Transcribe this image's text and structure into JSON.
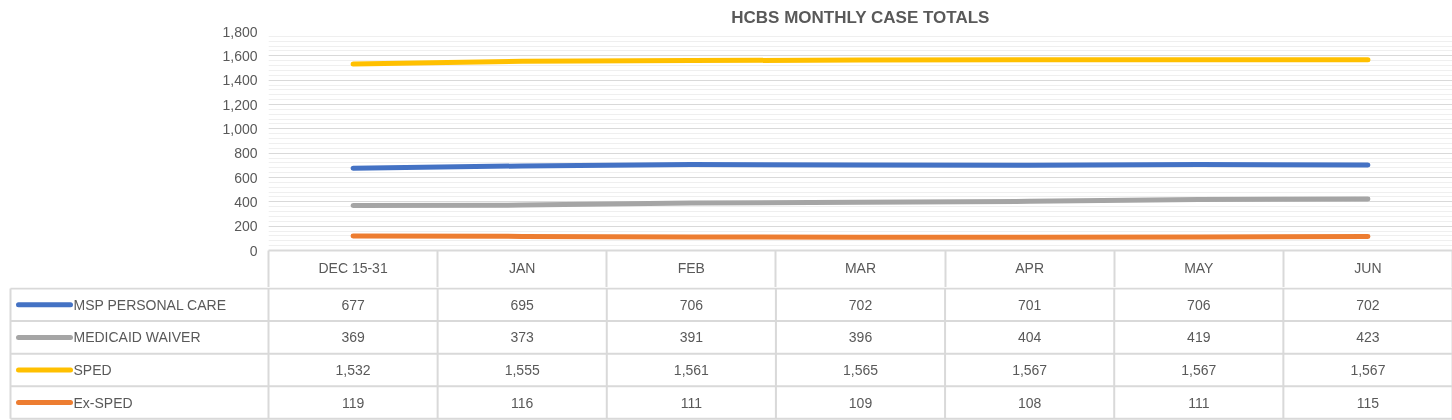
{
  "chart_data": {
    "type": "line",
    "title": "HCBS MONTHLY CASE TOTALS",
    "categories": [
      "DEC 15-31",
      "JAN",
      "FEB",
      "MAR",
      "APR",
      "MAY",
      "JUN"
    ],
    "series": [
      {
        "name": "MSP PERSONAL CARE",
        "color": "#4472c4",
        "values": [
          677,
          695,
          706,
          702,
          701,
          706,
          702
        ],
        "value_labels": [
          "677",
          "695",
          "706",
          "702",
          "701",
          "706",
          "702"
        ]
      },
      {
        "name": "MEDICAID WAIVER",
        "color": "#a5a5a5",
        "values": [
          369,
          373,
          391,
          396,
          404,
          419,
          423
        ],
        "value_labels": [
          "369",
          "373",
          "391",
          "396",
          "404",
          "419",
          "423"
        ]
      },
      {
        "name": "SPED",
        "color": "#ffc000",
        "values": [
          1532,
          1555,
          1561,
          1565,
          1567,
          1567,
          1567
        ],
        "value_labels": [
          "1,532",
          "1,555",
          "1,561",
          "1,565",
          "1,567",
          "1,567",
          "1,567"
        ]
      },
      {
        "name": "Ex-SPED",
        "color": "#ed7d31",
        "values": [
          119,
          116,
          111,
          109,
          108,
          111,
          115
        ],
        "value_labels": [
          "119",
          "116",
          "111",
          "109",
          "108",
          "111",
          "115"
        ]
      }
    ],
    "ylim": [
      0,
      1800
    ],
    "yticks": [
      0,
      200,
      400,
      600,
      800,
      {
        "value": 1000,
        "label": "1,000"
      },
      {
        "value": 1200,
        "label": "1,200"
      },
      {
        "value": 1400,
        "label": "1,400"
      },
      {
        "value": 1600,
        "label": "1,600"
      },
      {
        "value": 1800,
        "label": "1,800"
      }
    ],
    "grid": "y",
    "legend": "bottom",
    "line_style": "solid"
  }
}
